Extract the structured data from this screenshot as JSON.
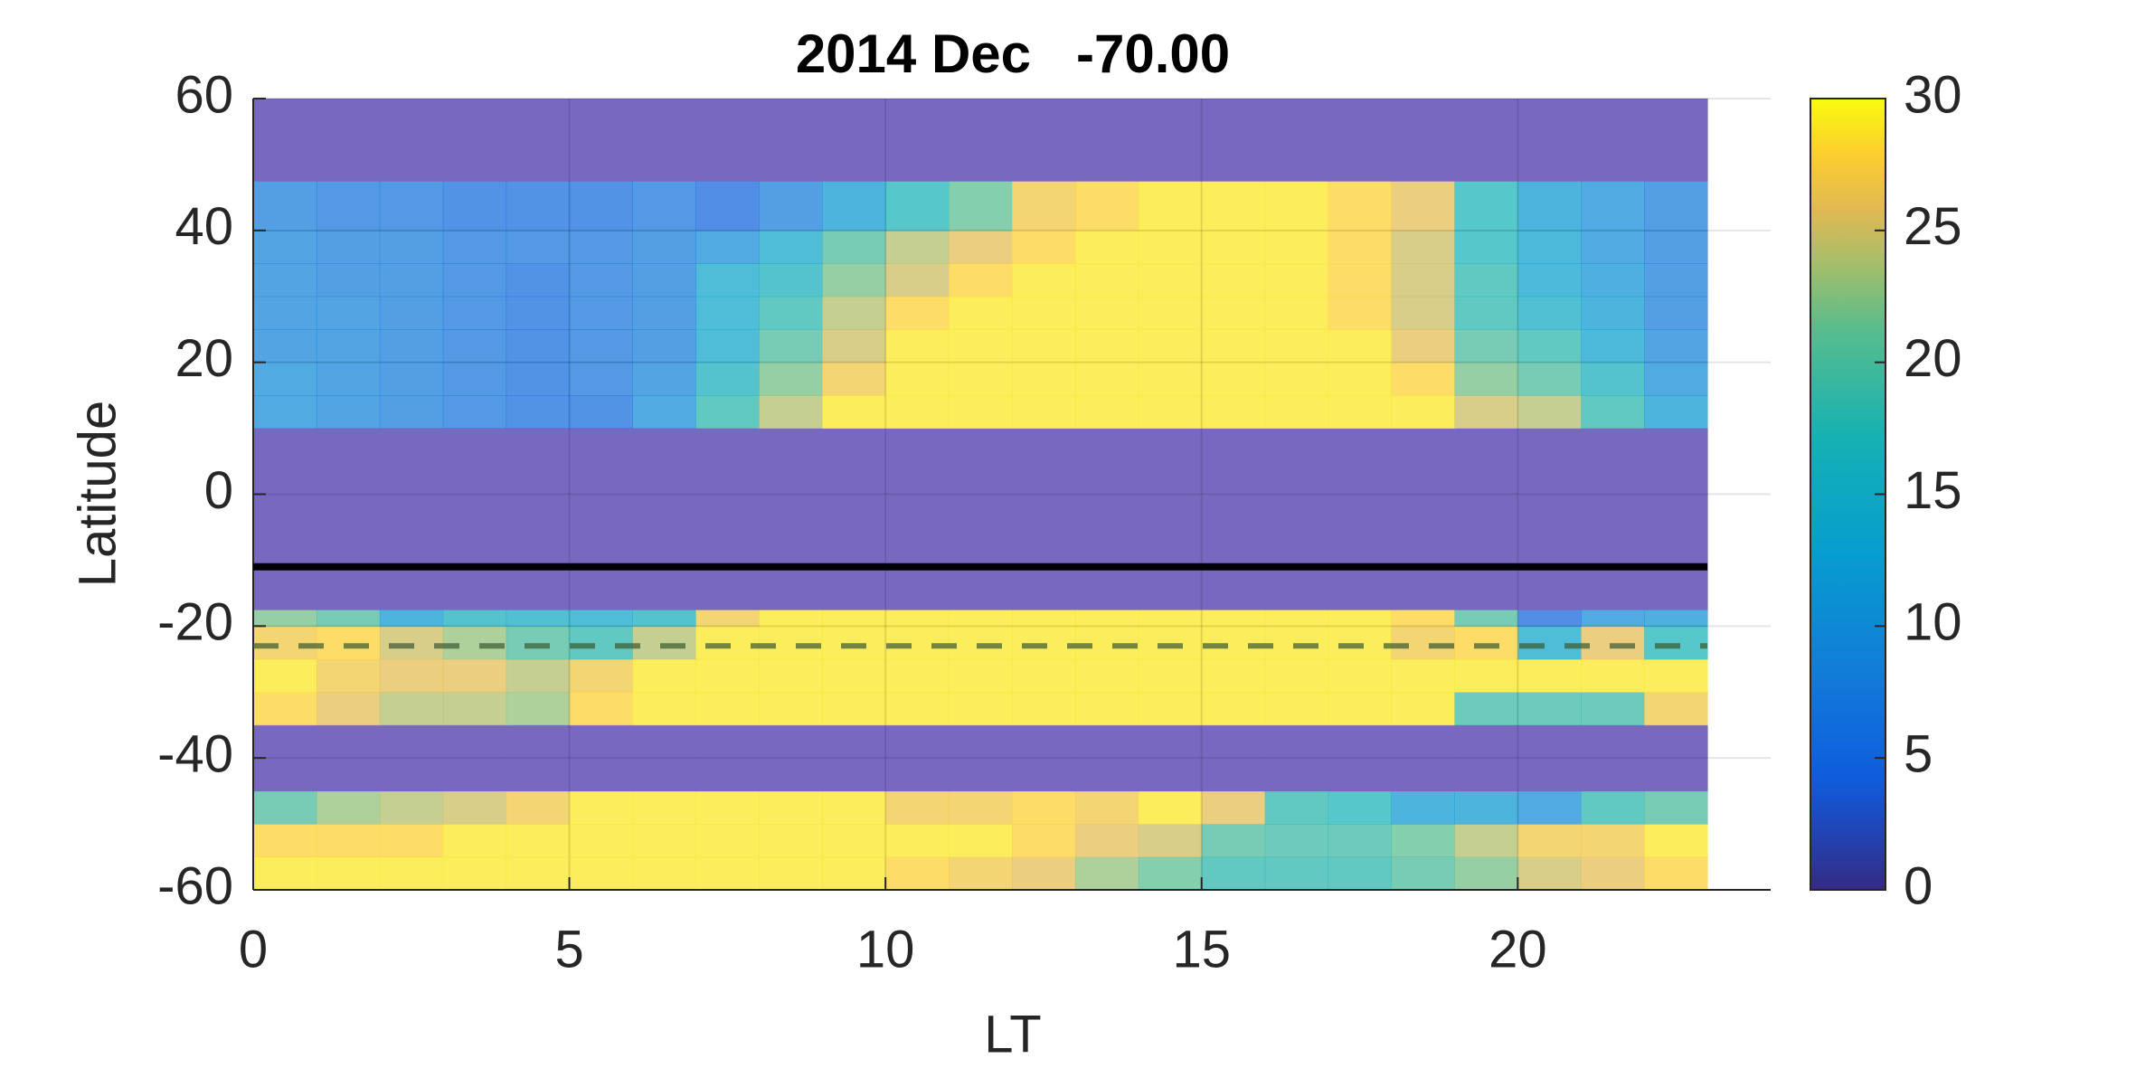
{
  "chart_data": {
    "type": "heatmap",
    "title": "2014 Dec   -70.00",
    "xlabel": "LT",
    "ylabel": "Latitude",
    "xlim": [
      0,
      24
    ],
    "xticks": [
      0,
      5,
      10,
      15,
      20
    ],
    "ylim": [
      -60,
      60
    ],
    "yticks": [
      -60,
      -40,
      -20,
      0,
      20,
      40,
      60
    ],
    "grid": true,
    "colormap": "parula",
    "nan_color": "#7868c0",
    "clim": [
      0,
      30
    ],
    "cticks": [
      0,
      5,
      10,
      15,
      20,
      25,
      30
    ],
    "x_edges": [
      0,
      1,
      2,
      3,
      4,
      5,
      6,
      7,
      8,
      9,
      10,
      11,
      12,
      13,
      14,
      15,
      16,
      17,
      18,
      19,
      20,
      21,
      22,
      23
    ],
    "y_edges": [
      -60,
      -55,
      -50,
      -45,
      -35,
      -30,
      -25,
      -20,
      -17.5,
      10,
      15,
      20,
      25,
      30,
      35,
      40,
      47.5,
      60
    ],
    "z": [
      [
        29,
        29,
        29,
        29,
        29,
        29,
        29,
        29,
        29,
        29,
        28,
        27,
        26,
        23,
        21,
        18,
        18,
        18,
        20,
        22,
        25,
        26,
        28
      ],
      [
        28,
        28,
        28,
        29,
        29,
        29,
        29,
        29,
        29,
        29,
        29,
        29,
        28,
        26,
        25,
        20,
        19,
        19,
        21,
        24,
        27,
        27,
        29
      ],
      [
        20,
        23,
        24,
        25,
        27,
        29,
        29,
        29,
        29,
        29,
        27,
        27,
        28,
        27,
        29,
        26,
        18,
        17,
        12,
        12,
        10,
        18,
        20
      ],
      [
        null,
        null,
        null,
        null,
        null,
        null,
        null,
        null,
        null,
        null,
        null,
        null,
        null,
        null,
        null,
        null,
        null,
        null,
        null,
        null,
        null,
        null,
        null
      ],
      [
        28,
        26,
        24,
        24,
        23,
        28,
        29,
        29,
        29,
        29,
        29,
        29,
        29,
        29,
        29,
        29,
        29,
        29,
        29,
        19,
        19,
        19,
        27
      ],
      [
        29,
        27,
        26,
        26,
        24,
        27,
        29,
        29,
        29,
        29,
        29,
        29,
        29,
        29,
        29,
        29,
        29,
        29,
        29,
        29,
        29,
        29,
        29
      ],
      [
        27,
        28,
        25,
        23,
        20,
        18,
        24,
        29,
        29,
        29,
        29,
        29,
        29,
        29,
        29,
        29,
        29,
        29,
        27,
        28,
        14,
        26,
        17
      ],
      [
        22,
        20,
        12,
        16,
        15,
        14,
        16,
        27,
        29,
        29,
        29,
        29,
        29,
        29,
        29,
        29,
        29,
        29,
        28,
        20,
        5,
        10,
        11
      ],
      [
        null,
        null,
        null,
        null,
        null,
        null,
        null,
        null,
        null,
        null,
        null,
        null,
        null,
        null,
        null,
        null,
        null,
        null,
        null,
        null,
        null,
        null,
        null
      ],
      [
        10,
        9,
        8,
        7,
        6,
        6,
        10,
        18,
        24,
        29,
        29,
        29,
        29,
        29,
        29,
        29,
        29,
        29,
        29,
        25,
        24,
        18,
        12
      ],
      [
        10,
        9,
        8,
        7,
        6,
        7,
        9,
        16,
        22,
        27,
        29,
        29,
        29,
        29,
        29,
        29,
        29,
        29,
        28,
        22,
        20,
        16,
        10
      ],
      [
        9,
        9,
        8,
        7,
        6,
        7,
        8,
        14,
        20,
        25,
        29,
        29,
        29,
        29,
        29,
        29,
        29,
        29,
        26,
        20,
        18,
        13,
        9
      ],
      [
        9,
        9,
        8,
        7,
        6,
        7,
        8,
        14,
        18,
        24,
        28,
        29,
        29,
        29,
        29,
        29,
        29,
        28,
        25,
        18,
        15,
        12,
        8
      ],
      [
        9,
        8,
        8,
        7,
        6,
        7,
        8,
        14,
        16,
        22,
        25,
        28,
        29,
        29,
        29,
        29,
        29,
        28,
        25,
        18,
        13,
        11,
        8
      ],
      [
        9,
        8,
        8,
        7,
        7,
        7,
        8,
        10,
        14,
        20,
        24,
        26,
        28,
        29,
        29,
        29,
        29,
        28,
        25,
        17,
        13,
        10,
        8
      ],
      [
        8,
        7,
        7,
        6,
        6,
        6,
        7,
        5,
        8,
        12,
        17,
        21,
        27,
        28,
        29,
        29,
        29,
        28,
        26,
        17,
        12,
        10,
        8
      ],
      [
        null,
        null,
        null,
        null,
        null,
        null,
        null,
        null,
        null,
        null,
        null,
        null,
        null,
        null,
        null,
        null,
        null,
        null,
        null,
        null,
        null,
        null,
        null
      ]
    ],
    "hlines": [
      {
        "y": -11,
        "color": "#000000",
        "style": "solid"
      },
      {
        "y": -23,
        "color": "#3a5a30",
        "style": "dashed"
      }
    ]
  }
}
